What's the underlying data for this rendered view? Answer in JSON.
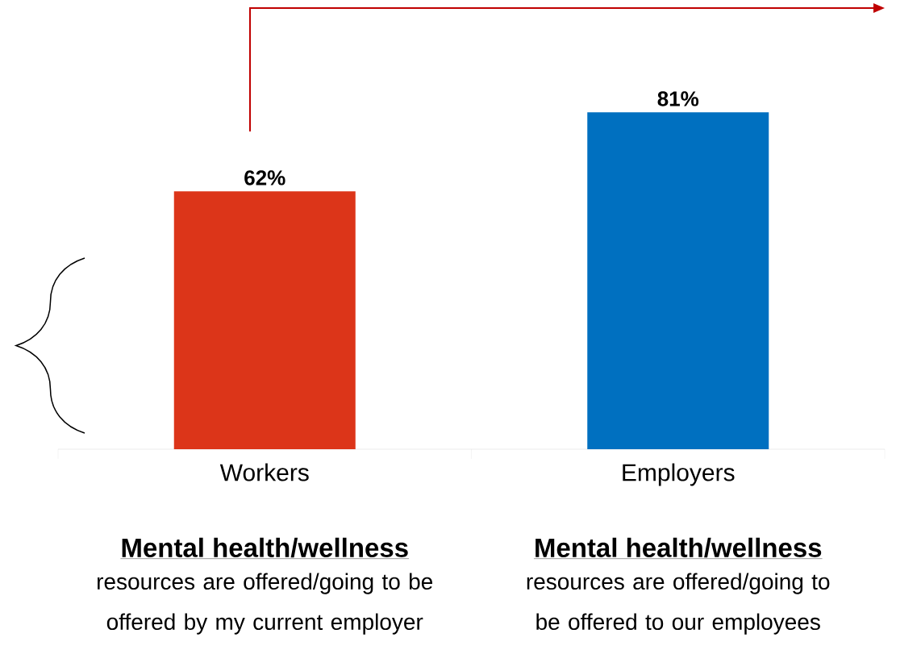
{
  "chart_data": {
    "type": "bar",
    "categories": [
      "Workers",
      "Employers"
    ],
    "values": [
      62,
      81
    ],
    "colors": [
      "#dc3519",
      "#0070c0"
    ],
    "value_labels": [
      "62%",
      "81%"
    ],
    "annotations": [
      "Mental health/wellness",
      "resources are offered/going to be offered by my current employer",
      "Mental health/wellness",
      "resources are offered/going to be offered to our employees"
    ]
  }
}
